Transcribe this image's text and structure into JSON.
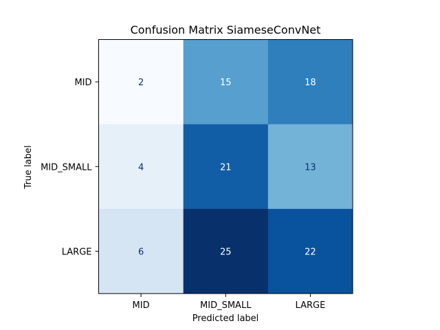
{
  "chart_data": {
    "type": "heatmap",
    "title": "Confusion Matrix SiameseConvNet",
    "xlabel": "Predicted label",
    "ylabel": "True label",
    "x_categories": [
      "MID",
      "MID_SMALL",
      "LARGE"
    ],
    "y_categories": [
      "MID",
      "MID_SMALL",
      "LARGE"
    ],
    "values": [
      [
        2,
        15,
        18
      ],
      [
        4,
        21,
        13
      ],
      [
        6,
        25,
        22
      ]
    ],
    "colormap": "Blues",
    "value_range": [
      2,
      25
    ],
    "colorbar": false,
    "grid": false
  }
}
